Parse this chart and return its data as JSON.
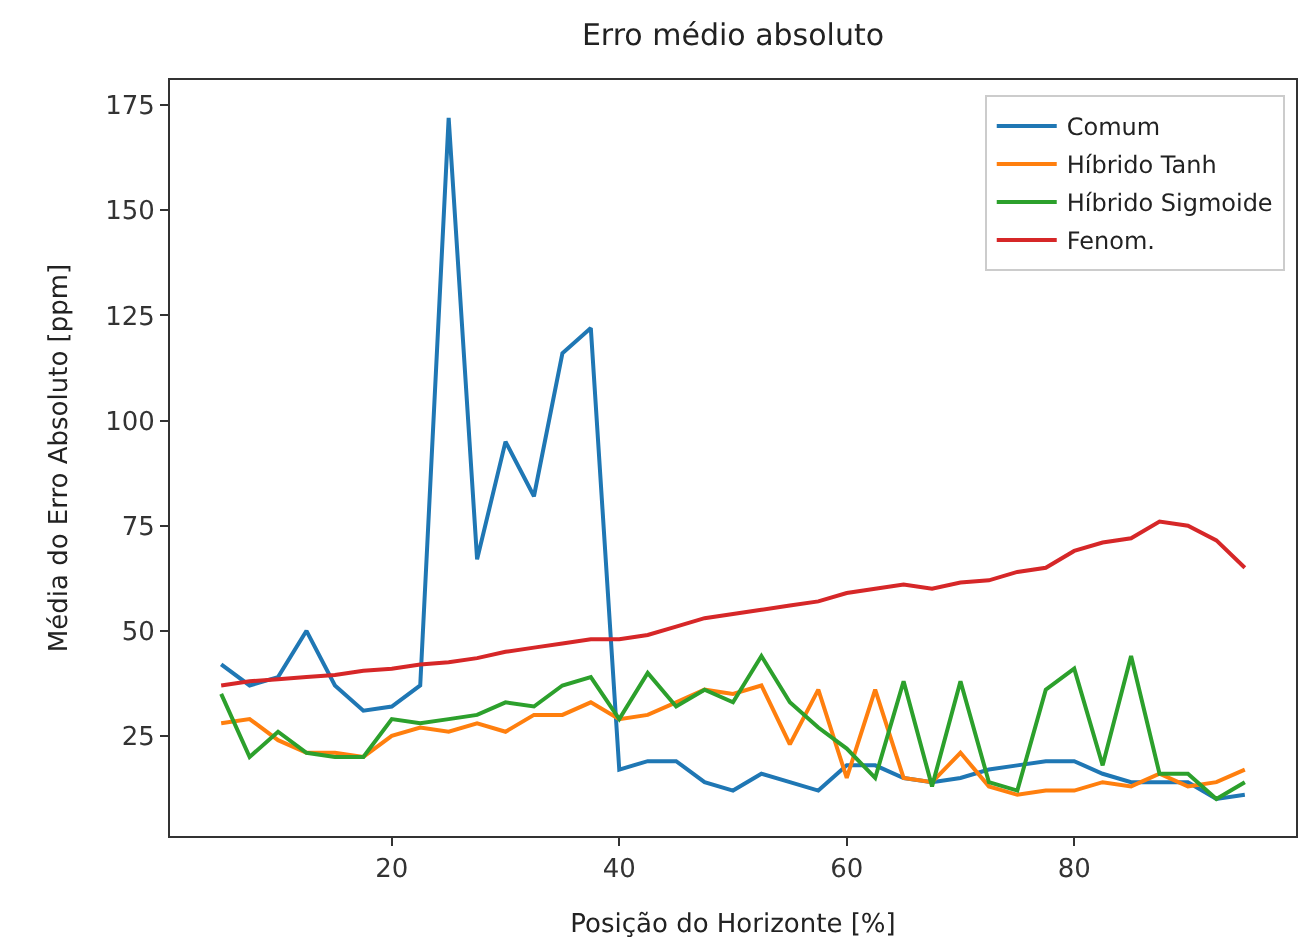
{
  "chart_data": {
    "type": "line",
    "title": "Erro médio absoluto",
    "xlabel": "Posição do Horizonte [%]",
    "ylabel": "Média do Erro Absoluto [ppm]",
    "x": [
      5,
      7.5,
      10,
      12.5,
      15,
      17.5,
      20,
      22.5,
      25,
      27.5,
      30,
      32.5,
      35,
      37.5,
      40,
      42.5,
      45,
      47.5,
      50,
      52.5,
      55,
      57.5,
      60,
      62.5,
      65,
      67.5,
      70,
      72.5,
      75,
      77.5,
      80,
      82.5,
      85,
      87.5,
      90,
      92.5,
      95
    ],
    "series": [
      {
        "name": "Comum",
        "color": "#1f77b4",
        "values": [
          42,
          37,
          39,
          50,
          37,
          31,
          32,
          37,
          172,
          67,
          95,
          82,
          116,
          122,
          17,
          19,
          19,
          14,
          12,
          16,
          14,
          12,
          18,
          18,
          15,
          14,
          15,
          17,
          18,
          19,
          19,
          16,
          14,
          14,
          14,
          10,
          11
        ]
      },
      {
        "name": "Híbrido Tanh",
        "color": "#ff7f0e",
        "values": [
          28,
          29,
          24,
          21,
          21,
          20,
          25,
          27,
          26,
          28,
          26,
          30,
          30,
          33,
          29,
          30,
          33,
          36,
          35,
          37,
          23,
          36,
          15,
          36,
          15,
          14,
          21,
          13,
          11,
          12,
          12,
          14,
          13,
          16,
          13,
          14,
          17
        ]
      },
      {
        "name": "Híbrido Sigmoide",
        "color": "#2ca02c",
        "values": [
          35,
          20,
          26,
          21,
          20,
          20,
          29,
          28,
          29,
          30,
          33,
          32,
          37,
          39,
          29,
          40,
          32,
          36,
          33,
          44,
          33,
          27,
          22,
          15,
          38,
          13,
          38,
          14,
          12,
          36,
          41,
          18,
          44,
          16,
          16,
          10,
          14
        ]
      },
      {
        "name": "Fenom.",
        "color": "#d62728",
        "values": [
          37,
          38,
          38.5,
          39,
          39.5,
          40.5,
          41,
          42,
          42.5,
          43.5,
          45,
          46,
          47,
          48,
          48,
          49,
          51,
          53,
          54,
          55,
          56,
          57,
          59,
          60,
          61,
          60,
          61.5,
          62,
          64,
          65,
          69,
          71,
          72,
          76,
          75,
          71.5,
          65
        ]
      }
    ],
    "xlim": [
      0.5,
      99.5
    ],
    "xticks": [
      20,
      40,
      60,
      80
    ],
    "ylim": [
      1.2,
      181
    ],
    "yticks": [
      25,
      50,
      75,
      100,
      125,
      150,
      175
    ],
    "legend": "top right",
    "marker": "none",
    "line_style": "solid"
  }
}
